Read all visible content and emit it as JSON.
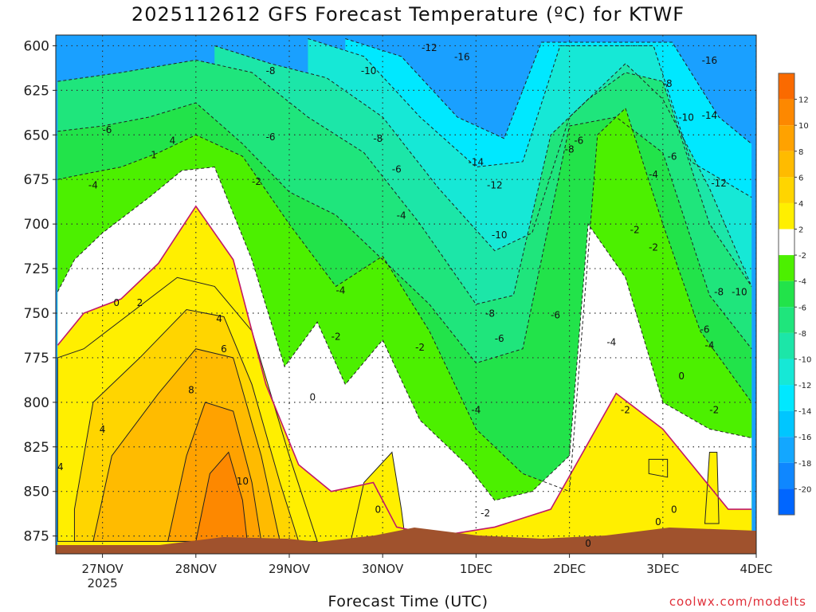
{
  "chart_data": {
    "type": "heatmap",
    "title": "2025112612 GFS Forecast Temperature (ºC) for KTWF",
    "xlabel": "Forecast Time (UTC)",
    "ylabel": "",
    "credit": "coolwx.com/modelts",
    "y_ticks": [
      600,
      625,
      650,
      675,
      700,
      725,
      750,
      775,
      800,
      825,
      850,
      875
    ],
    "ylim": [
      594,
      885
    ],
    "x_ticks": [
      {
        "label": "27NOV",
        "sub": "2025",
        "day": 1
      },
      {
        "label": "28NOV",
        "sub": "",
        "day": 2
      },
      {
        "label": "29NOV",
        "sub": "",
        "day": 3
      },
      {
        "label": "30NOV",
        "sub": "",
        "day": 4
      },
      {
        "label": "1DEC",
        "sub": "",
        "day": 5
      },
      {
        "label": "2DEC",
        "sub": "",
        "day": 6
      },
      {
        "label": "3DEC",
        "sub": "",
        "day": 7
      },
      {
        "label": "4DEC",
        "sub": "",
        "day": 8
      }
    ],
    "xlim": [
      0.5,
      8.0
    ],
    "colorbar": {
      "ticks": [
        12,
        10,
        8,
        6,
        4,
        2,
        -2,
        -4,
        -6,
        -8,
        -10,
        -12,
        -14,
        -16,
        -18,
        -20
      ],
      "colors": [
        "#fa6a00",
        "#fd8800",
        "#ffa200",
        "#ffbb00",
        "#ffd500",
        "#ffef00",
        "#ffffff",
        "#4cf000",
        "#22e34a",
        "#1fe57c",
        "#1ce6a8",
        "#16e8d6",
        "#00e8ff",
        "#00c6ff",
        "#13a7ff",
        "#0f87ff",
        "#0066ff"
      ]
    },
    "series": [
      {
        "name": "0",
        "level": 0,
        "color": "#c0186a",
        "x": [
          0.52,
          0.8,
          1.2,
          1.6,
          2.0,
          2.4,
          2.75,
          3.1,
          3.45,
          3.9,
          4.15,
          4.6,
          5.2,
          5.8,
          6.5,
          7.0,
          7.7,
          7.95
        ],
        "y": [
          768,
          750,
          742,
          722,
          690,
          720,
          790,
          835,
          850,
          845,
          870,
          875,
          870,
          860,
          795,
          815,
          860,
          860
        ]
      },
      {
        "name": "-2",
        "level": -2,
        "color": "#222222",
        "x": [
          0.52,
          0.7,
          1.0,
          1.5,
          1.85,
          2.2,
          2.6,
          2.95,
          3.3,
          3.6,
          4.0,
          4.4,
          4.9,
          5.2,
          5.6,
          6.0,
          6.2,
          6.6,
          7.0,
          7.5,
          7.95
        ],
        "y": [
          738,
          720,
          705,
          685,
          670,
          668,
          720,
          780,
          755,
          790,
          765,
          810,
          835,
          855,
          850,
          830,
          700,
          730,
          800,
          815,
          820
        ]
      },
      {
        "name": "-4",
        "level": -4,
        "color": "#222222",
        "x": [
          0.52,
          0.8,
          1.2,
          1.6,
          2.0,
          2.5,
          3.0,
          3.5,
          4.0,
          4.5,
          5.0,
          5.5,
          6.0,
          6.3,
          6.6,
          7.0,
          7.4,
          7.95
        ],
        "y": [
          675,
          672,
          668,
          660,
          650,
          662,
          700,
          735,
          718,
          760,
          815,
          840,
          850,
          650,
          635,
          700,
          760,
          800
        ]
      },
      {
        "name": "-6",
        "level": -6,
        "color": "#222222",
        "x": [
          0.52,
          1.0,
          1.5,
          2.0,
          2.5,
          3.0,
          3.5,
          4.0,
          4.5,
          5.0,
          5.5,
          6.0,
          6.5,
          7.0,
          7.5,
          7.95
        ],
        "y": [
          648,
          645,
          640,
          632,
          655,
          682,
          695,
          720,
          745,
          778,
          770,
          645,
          640,
          660,
          740,
          770
        ]
      },
      {
        "name": "-8",
        "level": -8,
        "color": "#222222",
        "x": [
          0.52,
          1.2,
          2.0,
          2.6,
          3.2,
          3.8,
          4.4,
          5.0,
          5.4,
          5.8,
          6.2,
          6.6,
          7.0,
          7.5,
          7.95
        ],
        "y": [
          620,
          615,
          608,
          615,
          640,
          660,
          700,
          745,
          740,
          650,
          630,
          615,
          620,
          700,
          735
        ]
      },
      {
        "name": "-10",
        "level": -10,
        "color": "#222222",
        "x": [
          2.2,
          2.8,
          3.4,
          4.0,
          4.6,
          5.2,
          5.6,
          6.0,
          6.6,
          7.0,
          7.5,
          7.95
        ],
        "y": [
          600,
          610,
          618,
          640,
          680,
          715,
          705,
          640,
          610,
          630,
          680,
          735
        ]
      },
      {
        "name": "-12",
        "level": -12,
        "color": "#222222",
        "x": [
          3.2,
          3.8,
          4.4,
          5.0,
          5.5,
          5.9,
          6.9,
          7.3,
          7.95
        ],
        "y": [
          596,
          606,
          640,
          668,
          665,
          600,
          600,
          665,
          685
        ]
      },
      {
        "name": "-14",
        "level": -14,
        "color": "#222222",
        "x": [
          3.6,
          4.2,
          4.8,
          5.3,
          5.7,
          7.1,
          7.6,
          7.95
        ],
        "y": [
          596,
          606,
          640,
          652,
          598,
          598,
          640,
          655
        ]
      }
    ],
    "labels": [
      {
        "text": "-12",
        "x": 4.5,
        "y": 603
      },
      {
        "text": "-16",
        "x": 4.85,
        "y": 608
      },
      {
        "text": "-16",
        "x": 7.5,
        "y": 610
      },
      {
        "text": "-8",
        "x": 2.8,
        "y": 616
      },
      {
        "text": "-10",
        "x": 3.85,
        "y": 616
      },
      {
        "text": "-8",
        "x": 7.05,
        "y": 623
      },
      {
        "text": "-10",
        "x": 7.25,
        "y": 642
      },
      {
        "text": "-14",
        "x": 7.5,
        "y": 641
      },
      {
        "text": "-6",
        "x": 1.05,
        "y": 649
      },
      {
        "text": "-6",
        "x": 2.8,
        "y": 653
      },
      {
        "text": "-8",
        "x": 3.95,
        "y": 654
      },
      {
        "text": "-6",
        "x": 6.1,
        "y": 655
      },
      {
        "text": "-8",
        "x": 6.0,
        "y": 660
      },
      {
        "text": "4",
        "x": 1.75,
        "y": 655
      },
      {
        "text": "1",
        "x": 1.55,
        "y": 663
      },
      {
        "text": "-6",
        "x": 7.1,
        "y": 664
      },
      {
        "text": "-14",
        "x": 5.0,
        "y": 667
      },
      {
        "text": "-6",
        "x": 4.15,
        "y": 671
      },
      {
        "text": "-4",
        "x": 0.9,
        "y": 680
      },
      {
        "text": "-2",
        "x": 2.65,
        "y": 678
      },
      {
        "text": "-12",
        "x": 5.2,
        "y": 680
      },
      {
        "text": "-4",
        "x": 6.9,
        "y": 674
      },
      {
        "text": "-12",
        "x": 7.6,
        "y": 679
      },
      {
        "text": "-4",
        "x": 4.2,
        "y": 697
      },
      {
        "text": "-2",
        "x": 6.7,
        "y": 705
      },
      {
        "text": "-10",
        "x": 5.25,
        "y": 708
      },
      {
        "text": "-2",
        "x": 6.9,
        "y": 715
      },
      {
        "text": "-4",
        "x": 3.55,
        "y": 739
      },
      {
        "text": "-8",
        "x": 7.6,
        "y": 740
      },
      {
        "text": "-10",
        "x": 7.82,
        "y": 740
      },
      {
        "text": "0",
        "x": 1.15,
        "y": 746
      },
      {
        "text": "2",
        "x": 1.4,
        "y": 746
      },
      {
        "text": "-8",
        "x": 5.15,
        "y": 752
      },
      {
        "text": "-6",
        "x": 5.85,
        "y": 753
      },
      {
        "text": "4",
        "x": 2.25,
        "y": 755
      },
      {
        "text": "-6",
        "x": 7.45,
        "y": 761
      },
      {
        "text": "-2",
        "x": 3.5,
        "y": 765
      },
      {
        "text": "-6",
        "x": 5.25,
        "y": 766
      },
      {
        "text": "-4",
        "x": 6.45,
        "y": 768
      },
      {
        "text": "-2",
        "x": 4.4,
        "y": 771
      },
      {
        "text": "-4",
        "x": 7.5,
        "y": 770
      },
      {
        "text": "6",
        "x": 2.3,
        "y": 772
      },
      {
        "text": "0",
        "x": 7.2,
        "y": 787
      },
      {
        "text": "8",
        "x": 1.95,
        "y": 795
      },
      {
        "text": "0",
        "x": 3.25,
        "y": 799
      },
      {
        "text": "-4",
        "x": 5.0,
        "y": 806
      },
      {
        "text": "-2",
        "x": 6.6,
        "y": 806
      },
      {
        "text": "-2",
        "x": 7.55,
        "y": 806
      },
      {
        "text": "4",
        "x": 1.0,
        "y": 817
      },
      {
        "text": "4",
        "x": 0.55,
        "y": 838
      },
      {
        "text": "10",
        "x": 2.5,
        "y": 846
      },
      {
        "text": "0",
        "x": 3.95,
        "y": 862
      },
      {
        "text": "-2",
        "x": 5.1,
        "y": 864
      },
      {
        "text": "0",
        "x": 7.12,
        "y": 862
      },
      {
        "text": "0",
        "x": 6.95,
        "y": 869
      },
      {
        "text": "0",
        "x": 6.2,
        "y": 881
      }
    ]
  }
}
